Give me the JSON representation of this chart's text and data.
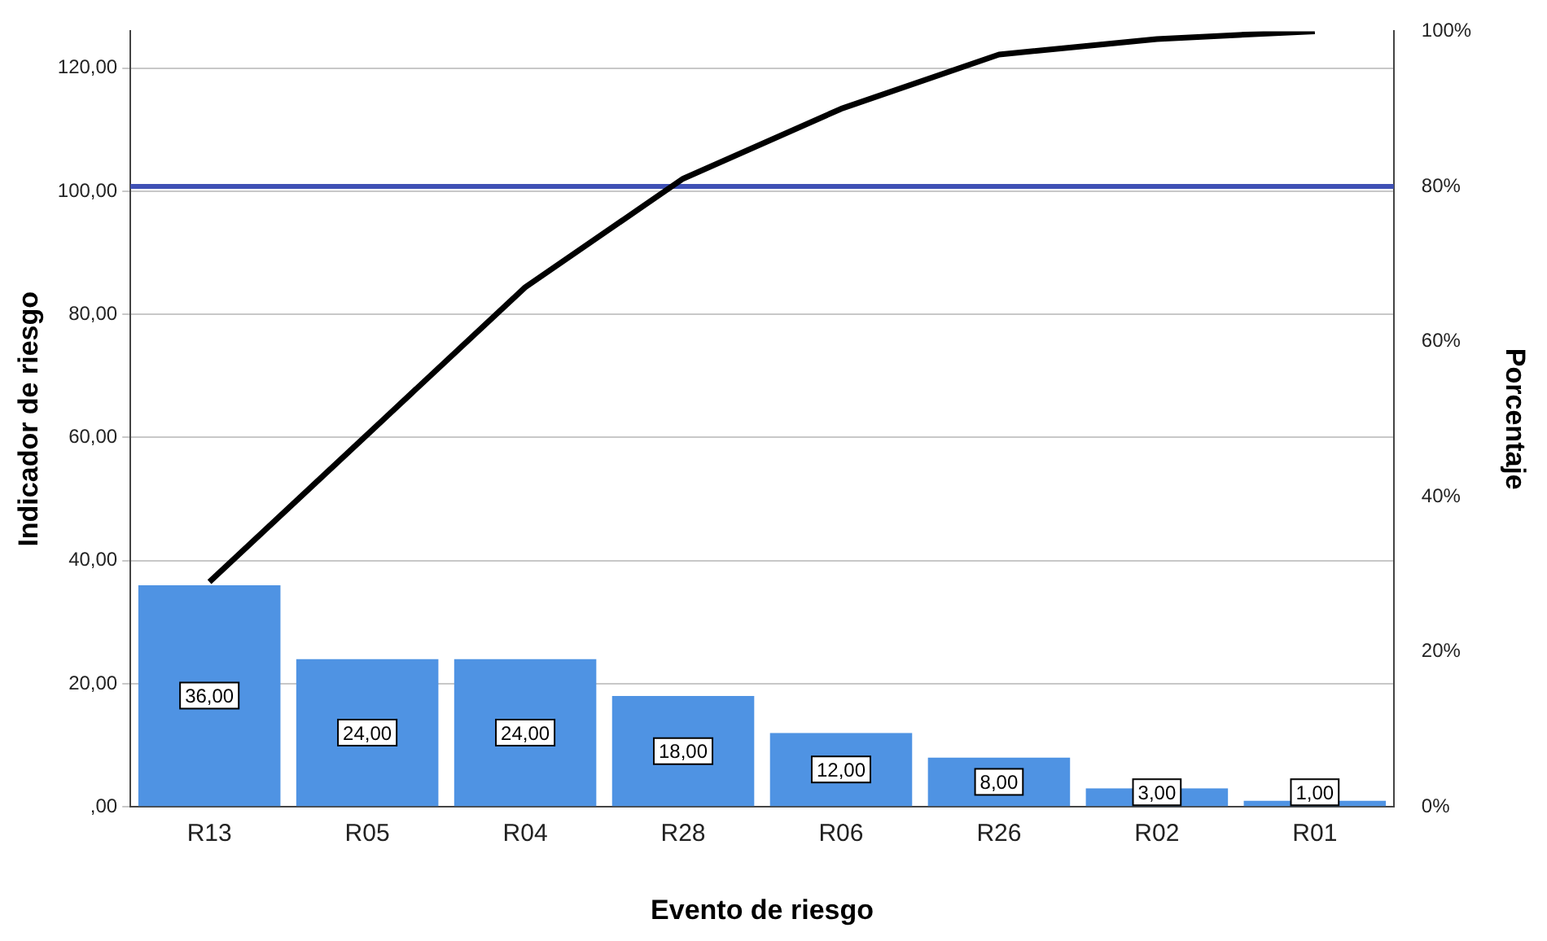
{
  "chart_data": {
    "type": "bar",
    "xlabel": "Evento de riesgo",
    "ylabel": "Indicador de riesgo",
    "y2label": "Porcentaje",
    "categories": [
      "R13",
      "R05",
      "R04",
      "R28",
      "R06",
      "R26",
      "R02",
      "R01"
    ],
    "series": [
      {
        "color": "#4f93e3",
        "values": [
          36,
          24,
          24,
          18,
          12,
          8,
          3,
          1
        ],
        "value_labels": [
          "36,00",
          "24,00",
          "24,00",
          "18,00",
          "12,00",
          "8,00",
          "3,00",
          "1,00"
        ]
      },
      {
        "type": "line",
        "axis": "y2",
        "color": "#000000",
        "values": [
          29,
          48,
          67,
          81,
          90,
          97,
          99,
          100
        ]
      }
    ],
    "ylim": [
      0,
      126
    ],
    "yticks": [
      {
        "value": 0,
        "label": ",00"
      },
      {
        "value": 20,
        "label": "20,00"
      },
      {
        "value": 40,
        "label": "40,00"
      },
      {
        "value": 60,
        "label": "60,00"
      },
      {
        "value": 80,
        "label": "80,00"
      },
      {
        "value": 100,
        "label": "100,00"
      },
      {
        "value": 120,
        "label": "120,00"
      }
    ],
    "y2lim": [
      0,
      100
    ],
    "y2ticks": [
      {
        "value": 0,
        "label": "0%"
      },
      {
        "value": 20,
        "label": "20%"
      },
      {
        "value": 40,
        "label": "40%"
      },
      {
        "value": 60,
        "label": "60%"
      },
      {
        "value": 80,
        "label": "80%"
      },
      {
        "value": 100,
        "label": "100%"
      }
    ],
    "ref_lines": [
      {
        "axis": "y2",
        "value": 80,
        "color": "#3f51b5"
      }
    ],
    "grid": "y",
    "legend": false,
    "marker": "none",
    "line_style": "solid"
  }
}
